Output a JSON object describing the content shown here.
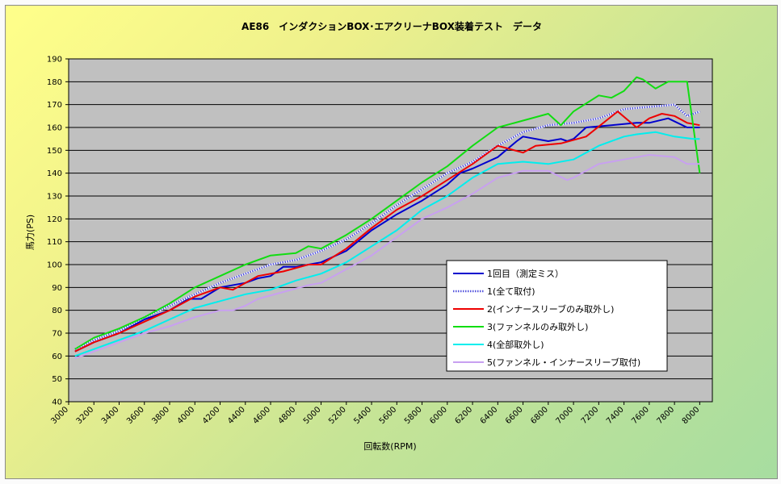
{
  "chart_data": {
    "type": "line",
    "title": "AE86　インダクションBOX･エアクリーナBOX装着テスト　データ",
    "xlabel": "回転数(RPM)",
    "ylabel": "馬力(PS)",
    "xlim": [
      3000,
      8100
    ],
    "ylim": [
      40,
      190
    ],
    "x_ticks": [
      3000,
      3200,
      3400,
      3600,
      3800,
      4000,
      4200,
      4400,
      4600,
      4800,
      5000,
      5200,
      5400,
      5600,
      5800,
      6000,
      6200,
      6400,
      6600,
      6800,
      7000,
      7200,
      7400,
      7600,
      7800,
      8000
    ],
    "y_ticks": [
      40,
      50,
      60,
      70,
      80,
      90,
      100,
      110,
      120,
      130,
      140,
      150,
      160,
      170,
      180,
      190
    ],
    "grid": true,
    "legend_position": "right-middle",
    "colors": {
      "plot_background": "#c0c0c0",
      "grid": "#000000",
      "chart_gradient_start": "#ffff8a",
      "chart_gradient_end": "#a7dda0"
    },
    "series": [
      {
        "name": "1回目（測定ミス）",
        "color": "#0000cd",
        "style": "solid",
        "points": [
          [
            3050,
            62
          ],
          [
            3200,
            66
          ],
          [
            3400,
            70
          ],
          [
            3600,
            76
          ],
          [
            3800,
            80
          ],
          [
            3950,
            85
          ],
          [
            4050,
            85
          ],
          [
            4200,
            90
          ],
          [
            4400,
            92
          ],
          [
            4500,
            94
          ],
          [
            4600,
            95
          ],
          [
            4700,
            99
          ],
          [
            4800,
            99
          ],
          [
            5000,
            101
          ],
          [
            5200,
            106
          ],
          [
            5400,
            115
          ],
          [
            5600,
            122
          ],
          [
            5800,
            128
          ],
          [
            6000,
            135
          ],
          [
            6100,
            140
          ],
          [
            6200,
            142
          ],
          [
            6400,
            147
          ],
          [
            6550,
            154
          ],
          [
            6600,
            156
          ],
          [
            6800,
            154
          ],
          [
            6900,
            155
          ],
          [
            6950,
            154
          ],
          [
            7000,
            155
          ],
          [
            7100,
            160
          ],
          [
            7300,
            161
          ],
          [
            7500,
            162
          ],
          [
            7600,
            162
          ],
          [
            7750,
            164
          ],
          [
            7900,
            160
          ],
          [
            8000,
            160
          ]
        ]
      },
      {
        "name": "1(全て取付)",
        "color": "#5555dd",
        "style": "dotted",
        "points": [
          [
            3050,
            63
          ],
          [
            3200,
            67
          ],
          [
            3400,
            71
          ],
          [
            3600,
            77
          ],
          [
            3800,
            82
          ],
          [
            4000,
            87
          ],
          [
            4200,
            92
          ],
          [
            4400,
            96
          ],
          [
            4600,
            100
          ],
          [
            4800,
            102
          ],
          [
            5000,
            106
          ],
          [
            5200,
            111
          ],
          [
            5400,
            118
          ],
          [
            5600,
            126
          ],
          [
            5800,
            133
          ],
          [
            6000,
            140
          ],
          [
            6200,
            145
          ],
          [
            6400,
            152
          ],
          [
            6600,
            158
          ],
          [
            6800,
            161
          ],
          [
            7000,
            162
          ],
          [
            7200,
            164
          ],
          [
            7400,
            168
          ],
          [
            7600,
            169
          ],
          [
            7800,
            170
          ],
          [
            7900,
            165
          ],
          [
            8000,
            167
          ]
        ]
      },
      {
        "name": "2(インナースリーブのみ取外し)",
        "color": "#ee0000",
        "style": "solid",
        "points": [
          [
            3050,
            62
          ],
          [
            3200,
            66
          ],
          [
            3400,
            70
          ],
          [
            3600,
            75
          ],
          [
            3800,
            80
          ],
          [
            4000,
            86
          ],
          [
            4200,
            90
          ],
          [
            4300,
            89
          ],
          [
            4400,
            92
          ],
          [
            4500,
            95
          ],
          [
            4700,
            97
          ],
          [
            4900,
            100
          ],
          [
            5000,
            100
          ],
          [
            5200,
            107
          ],
          [
            5400,
            116
          ],
          [
            5600,
            124
          ],
          [
            5800,
            130
          ],
          [
            6000,
            137
          ],
          [
            6200,
            144
          ],
          [
            6400,
            152
          ],
          [
            6600,
            149
          ],
          [
            6700,
            152
          ],
          [
            6900,
            153
          ],
          [
            7100,
            156
          ],
          [
            7350,
            167
          ],
          [
            7500,
            160
          ],
          [
            7600,
            164
          ],
          [
            7700,
            166
          ],
          [
            7800,
            165
          ],
          [
            7900,
            162
          ],
          [
            8000,
            161
          ]
        ]
      },
      {
        "name": "3(ファンネルのみ取外し)",
        "color": "#11dd11",
        "style": "solid",
        "points": [
          [
            3050,
            63
          ],
          [
            3200,
            68
          ],
          [
            3400,
            72
          ],
          [
            3600,
            77
          ],
          [
            3800,
            83
          ],
          [
            4000,
            90
          ],
          [
            4200,
            95
          ],
          [
            4400,
            100
          ],
          [
            4600,
            104
          ],
          [
            4800,
            105
          ],
          [
            4900,
            108
          ],
          [
            5000,
            107
          ],
          [
            5200,
            113
          ],
          [
            5400,
            120
          ],
          [
            5600,
            128
          ],
          [
            5800,
            136
          ],
          [
            6000,
            143
          ],
          [
            6200,
            152
          ],
          [
            6400,
            160
          ],
          [
            6600,
            163
          ],
          [
            6800,
            166
          ],
          [
            6900,
            161
          ],
          [
            7000,
            167
          ],
          [
            7200,
            174
          ],
          [
            7300,
            173
          ],
          [
            7400,
            176
          ],
          [
            7500,
            182
          ],
          [
            7550,
            181
          ],
          [
            7650,
            177
          ],
          [
            7750,
            180
          ],
          [
            7900,
            180
          ],
          [
            8000,
            140
          ]
        ]
      },
      {
        "name": "4(全部取外し)",
        "color": "#00eeee",
        "style": "solid",
        "points": [
          [
            3050,
            60
          ],
          [
            3200,
            63
          ],
          [
            3400,
            67
          ],
          [
            3600,
            71
          ],
          [
            3800,
            76
          ],
          [
            4000,
            81
          ],
          [
            4200,
            84
          ],
          [
            4400,
            87
          ],
          [
            4600,
            89
          ],
          [
            4800,
            93
          ],
          [
            5000,
            96
          ],
          [
            5200,
            101
          ],
          [
            5400,
            108
          ],
          [
            5600,
            115
          ],
          [
            5800,
            124
          ],
          [
            6000,
            130
          ],
          [
            6200,
            138
          ],
          [
            6400,
            144
          ],
          [
            6600,
            145
          ],
          [
            6800,
            144
          ],
          [
            7000,
            146
          ],
          [
            7200,
            152
          ],
          [
            7400,
            156
          ],
          [
            7500,
            157
          ],
          [
            7650,
            158
          ],
          [
            7800,
            156
          ],
          [
            7950,
            155
          ],
          [
            8000,
            155
          ]
        ]
      },
      {
        "name": "5(ファンネル・インナースリーブ取付)",
        "color": "#c8a0f0",
        "style": "solid",
        "points": [
          [
            3050,
            59
          ],
          [
            3200,
            62
          ],
          [
            3400,
            66
          ],
          [
            3600,
            70
          ],
          [
            3800,
            73
          ],
          [
            4000,
            77
          ],
          [
            4200,
            80
          ],
          [
            4300,
            80
          ],
          [
            4400,
            82
          ],
          [
            4500,
            85
          ],
          [
            4700,
            88
          ],
          [
            4900,
            91
          ],
          [
            5000,
            92
          ],
          [
            5200,
            98
          ],
          [
            5400,
            104
          ],
          [
            5600,
            112
          ],
          [
            5800,
            120
          ],
          [
            6000,
            125
          ],
          [
            6200,
            131
          ],
          [
            6400,
            138
          ],
          [
            6600,
            141
          ],
          [
            6800,
            141
          ],
          [
            6950,
            137
          ],
          [
            7000,
            138
          ],
          [
            7200,
            144
          ],
          [
            7400,
            146
          ],
          [
            7600,
            148
          ],
          [
            7800,
            147
          ],
          [
            7900,
            144
          ],
          [
            8000,
            144
          ]
        ]
      }
    ]
  }
}
